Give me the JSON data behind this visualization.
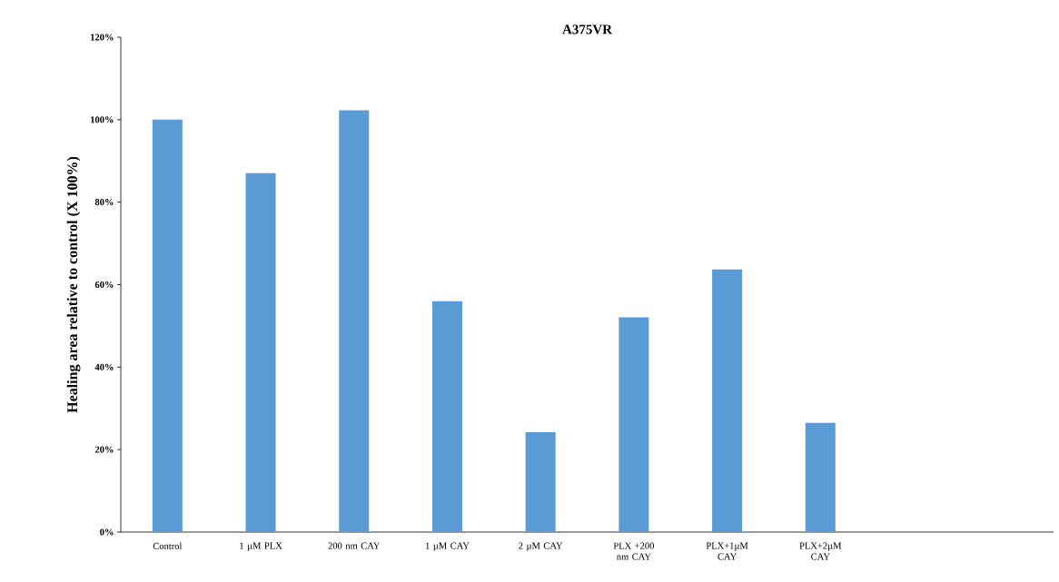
{
  "chart_data": {
    "type": "bar",
    "title": "A375VR",
    "ylabel": "Healing area relative to control (X 100%)",
    "categories": [
      "Control",
      "1 µM PLX",
      "200 nm CAY",
      "1 µM CAY",
      "2 µM CAY",
      "PLX +200 nm CAY",
      "PLX+1µM CAY",
      "PLX+2µM CAY",
      null,
      null
    ],
    "values": [
      100,
      87,
      102.3,
      56,
      24.2,
      52.1,
      63.7,
      26.5,
      null,
      null
    ],
    "color": "#5b9bd5",
    "ylim": [
      0,
      120
    ],
    "yticks": [
      {
        "value": 0,
        "label": "0%"
      },
      {
        "value": 20,
        "label": "20%"
      },
      {
        "value": 40,
        "label": "40%"
      },
      {
        "value": 60,
        "label": "60%"
      },
      {
        "value": 80,
        "label": "80%"
      },
      {
        "value": 100,
        "label": "100%"
      },
      {
        "value": 120,
        "label": "120%"
      }
    ]
  }
}
